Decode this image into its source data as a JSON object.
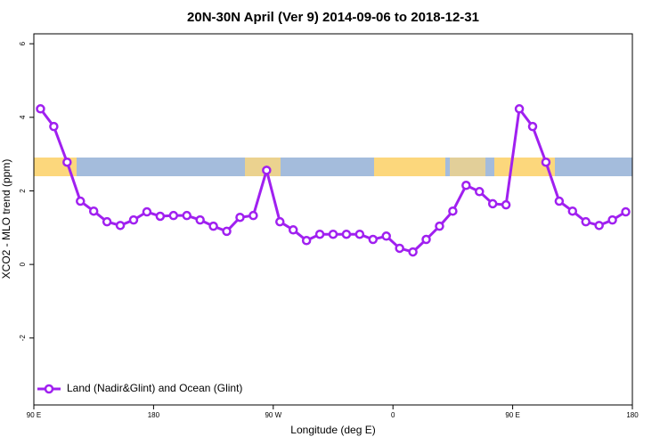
{
  "chart_data": {
    "type": "line",
    "title": "20N-30N April (Ver 9)   2014-09-06 to 2018-12-31",
    "x_label": "Longitude (deg E)",
    "y_label": "XCO2 - MLO trend (ppm)",
    "x": [
      95,
      105,
      115,
      125,
      135,
      145,
      155,
      165,
      175,
      185,
      195,
      205,
      215,
      225,
      235,
      245,
      255,
      265,
      275,
      285,
      295,
      305,
      315,
      325,
      335,
      345,
      355,
      365,
      375,
      385,
      395,
      405,
      415,
      425,
      435,
      445,
      455,
      465,
      475,
      485,
      495,
      505,
      515,
      525,
      535
    ],
    "series": [
      {
        "name": "Land (Nadir&Glint) and Ocean (Glint)",
        "color": "#a020f0",
        "values": [
          4.23,
          3.75,
          2.78,
          1.72,
          1.45,
          1.16,
          1.06,
          1.21,
          1.43,
          1.31,
          1.33,
          1.33,
          1.21,
          1.04,
          0.9,
          1.28,
          1.33,
          2.56,
          1.16,
          0.94,
          0.65,
          0.82,
          0.82,
          0.82,
          0.82,
          0.68,
          0.77,
          0.44,
          0.34,
          0.68,
          1.04,
          1.45,
          2.15,
          1.98,
          1.65,
          1.62,
          4.23,
          3.75,
          2.78,
          1.72,
          1.45,
          1.16,
          1.06,
          1.21,
          1.43
        ]
      }
    ],
    "xlim": [
      90,
      540
    ],
    "xticks": [
      {
        "value": 90,
        "label": "90 E"
      },
      180,
      {
        "value": 270,
        "label": "90 W"
      },
      {
        "value": 360,
        "label": "0"
      },
      {
        "value": 450,
        "label": "90 E"
      },
      {
        "value": 540,
        "label": "180"
      }
    ],
    "ylim": [
      -3.82,
      6.27
    ],
    "yticks": [
      -2,
      0,
      2,
      4,
      6
    ],
    "legend": "bottom-left"
  }
}
